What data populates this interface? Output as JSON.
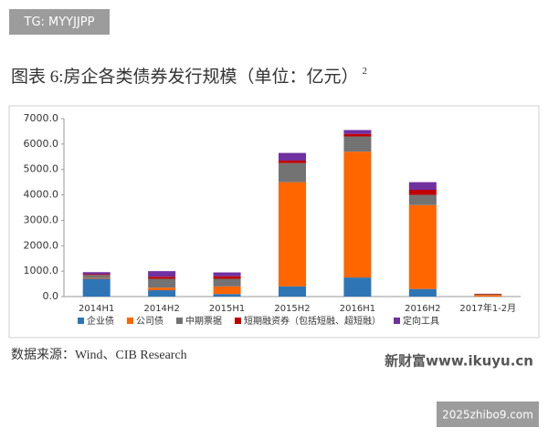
{
  "header_tag": "TG: MYYJJPP",
  "chart_data": {
    "type": "bar",
    "stacked": true,
    "title": "图表 6:房企各类债券发行规模（单位：亿元）",
    "title_footnote": "2",
    "categories": [
      "2014H1",
      "2014H2",
      "2015H1",
      "2015H2",
      "2016H1",
      "2016H2",
      "2017年1-2月"
    ],
    "series": [
      {
        "name": "企业债",
        "color": "#2e75b6",
        "values": [
          700,
          250,
          100,
          400,
          750,
          300,
          0
        ]
      },
      {
        "name": "公司债",
        "color": "#ff6600",
        "values": [
          30,
          100,
          300,
          4100,
          4950,
          3300,
          60
        ]
      },
      {
        "name": "中期票据",
        "color": "#737373",
        "values": [
          120,
          350,
          300,
          750,
          600,
          400,
          30
        ]
      },
      {
        "name": "短期融资券（包括短融、超短融）",
        "color": "#c00000",
        "values": [
          30,
          80,
          100,
          100,
          100,
          200,
          20
        ]
      },
      {
        "name": "定向工具",
        "color": "#7030a0",
        "values": [
          80,
          220,
          150,
          300,
          150,
          300,
          0
        ]
      }
    ],
    "ylim": [
      0,
      7000
    ],
    "yticks": [
      {
        "value": 0,
        "label": "0.0"
      },
      {
        "value": 1000,
        "label": "1000.0"
      },
      {
        "value": 2000,
        "label": "2000.0"
      },
      {
        "value": 3000,
        "label": "3000.0"
      },
      {
        "value": 4000,
        "label": "4000.0"
      },
      {
        "value": 5000,
        "label": "5000.0"
      },
      {
        "value": 6000,
        "label": "6000.0"
      },
      {
        "value": 7000,
        "label": "7000.0"
      }
    ],
    "grid": false,
    "legend": "bottom"
  },
  "source": "数据来源：Wind、CIB Research",
  "watermarks": [
    "新财富www.ikuyu.cn",
    "2025zhibo9.com"
  ]
}
